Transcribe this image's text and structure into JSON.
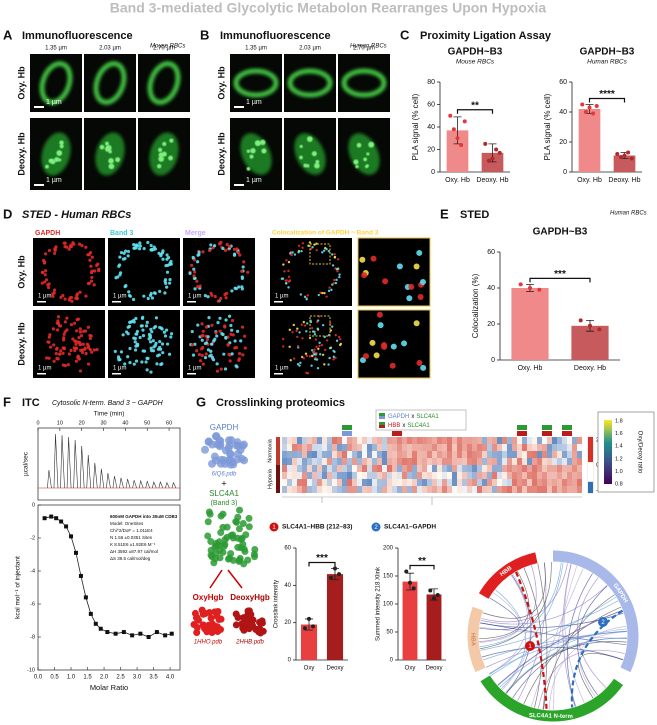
{
  "title": "Band 3-mediated Glycolytic Metabolon Rearranges Upon Hypoxia",
  "panelA": {
    "letter": "A",
    "heading": "Immunofluorescence",
    "species": "Mouse RBCs",
    "depths": [
      "1.35 µm",
      "2.03 µm",
      "2.70 µm"
    ],
    "rows": [
      "Oxy. Hb",
      "Deoxy. Hb"
    ],
    "scale": "1 µm"
  },
  "panelB": {
    "letter": "B",
    "heading": "Immunofluorescence",
    "species": "Human RBCs",
    "depths": [
      "1.35 µm",
      "2.03 µm",
      "2.70 µm"
    ],
    "rows": [
      "Oxy. Hb",
      "Deoxy. Hb"
    ],
    "scale": "1 µm"
  },
  "panelC": {
    "letter": "C",
    "heading": "Proximity Ligation Assay"
  },
  "panelD": {
    "letter": "D",
    "heading": "STED - Human RBCs",
    "channels": [
      "GAPDH",
      "Band 3",
      "Merge",
      "Colocalization of GAPDH ~ Band 3"
    ],
    "rows": [
      "Oxy. Hb",
      "Deoxy. Hb"
    ],
    "scale": "1 µm"
  },
  "panelE": {
    "letter": "E",
    "heading": "STED",
    "species": "Human RBCs"
  },
  "panelF": {
    "letter": "F",
    "heading": "ITC",
    "subheading": "Cytosolic N-term. Band 3 ~ GAPDH",
    "fit_text": [
      "600nM GAPDH into 30uM CDB3",
      "Model: OneSites",
      "Chi^2/DoF = 1.011E4",
      "N   1.56   ±0.0351 Sites",
      "K   8.51E6 ±1.92E6 M⁻¹",
      "ΔH  3592   ±87.97 cal/mol",
      "ΔS  39.5 cal/mol/deg"
    ]
  },
  "panelG": {
    "letter": "G",
    "heading": "Crosslinking proteomics",
    "structures": {
      "gapdh": "GAPDH",
      "gapdh_pdb": "6IQ6.pdb",
      "plus": "+",
      "slc": "SLC4A1",
      "slc_alt": "(Band 3)",
      "oxy": "OxyHgb",
      "deoxy": "DeoxyHgb",
      "oxy_pdb": "1HHO.pdb",
      "deoxy_pdb": "2HHB.pdb"
    },
    "heatmap": {
      "rows": [
        "Normoxia",
        "Hypoxia"
      ],
      "legend": [
        {
          "a": "GAPDH",
          "x": "x",
          "b": "SLC4A1"
        },
        {
          "a": "HBB",
          "x": "x",
          "b": "SLC4A1"
        }
      ],
      "scale": [
        "2",
        "0",
        "-1.9"
      ]
    },
    "ratio_bar": {
      "label": "Oxy/Deoxy ratio",
      "ticks": [
        "1.8",
        "1.6",
        "1.4",
        "1.2",
        "1.0",
        "0.8"
      ]
    },
    "circos": {
      "segments": [
        "HBB",
        "GAPDH",
        "HBA",
        "SLC4A1 N-term"
      ],
      "badges": [
        "1",
        "2"
      ]
    }
  },
  "chart_data": [
    {
      "type": "bar",
      "title": "GAPDH~B3",
      "subtitle": "Mouse RBCs",
      "ylabel": "PLA signal (% cell)",
      "categories": [
        "Oxy. Hb",
        "Deoxy. Hb"
      ],
      "values": [
        37,
        17
      ],
      "errors": [
        12,
        8
      ],
      "points": [
        [
          50,
          38,
          30,
          24,
          45
        ],
        [
          25,
          10,
          12,
          20,
          17
        ]
      ],
      "colors": [
        "#f08a8a",
        "#c65a5c"
      ],
      "point_colors": [
        "#e2383c",
        "#b02a2a"
      ],
      "ylim": [
        0,
        80
      ],
      "yticks": [
        0,
        20,
        40,
        60,
        80
      ],
      "significance": "**"
    },
    {
      "type": "bar",
      "title": "GAPDH~B3",
      "subtitle": "Human RBCs",
      "ylabel": "PLA signal (% cell)",
      "categories": [
        "Oxy. Hb",
        "Deoxy. Hb"
      ],
      "values": [
        42,
        11
      ],
      "errors": [
        3,
        2
      ],
      "points": [
        [
          45,
          40,
          43,
          39,
          44
        ],
        [
          12,
          10,
          11,
          13,
          9
        ]
      ],
      "colors": [
        "#f08a8a",
        "#c65a5c"
      ],
      "point_colors": [
        "#e2383c",
        "#b02a2a"
      ],
      "ylim": [
        0,
        60
      ],
      "yticks": [
        0,
        20,
        40,
        60
      ],
      "significance": "****"
    },
    {
      "type": "bar",
      "title": "GAPDH~B3",
      "ylabel": "Colocalization (%)",
      "categories": [
        "Oxy. Hb",
        "Deoxy. Hb"
      ],
      "values": [
        40,
        19
      ],
      "errors": [
        2,
        3
      ],
      "points": [
        [
          42,
          40,
          39
        ],
        [
          22,
          19,
          17
        ]
      ],
      "colors": [
        "#f08a8a",
        "#c65a5c"
      ],
      "point_colors": [
        "#e2383c",
        "#b02a2a"
      ],
      "ylim": [
        0,
        60
      ],
      "yticks": [
        0,
        20,
        40,
        60
      ],
      "significance": "***"
    },
    {
      "type": "bar",
      "title": "SLC4A1–HBB (212–83)",
      "badge": "1",
      "ylabel": "Crosslink intensity",
      "categories": [
        "Oxy",
        "Deoxy"
      ],
      "values": [
        19,
        46
      ],
      "errors": [
        3,
        3
      ],
      "points": [
        [
          17,
          22,
          18
        ],
        [
          44,
          49,
          46
        ]
      ],
      "colors": [
        "#e84040",
        "#a51d1d"
      ],
      "point_colors": [
        "#222222",
        "#222222"
      ],
      "ylim": [
        0,
        60
      ],
      "yticks": [
        0,
        20,
        40,
        60
      ],
      "significance": "***"
    },
    {
      "type": "bar",
      "title": "SLC4A1–GAPDH",
      "badge": "2",
      "ylabel": "Summed intensity 218 Xlink",
      "categories": [
        "Oxy",
        "Deoxy"
      ],
      "values": [
        140,
        117
      ],
      "errors": [
        15,
        10
      ],
      "points": [
        [
          158,
          138,
          128
        ],
        [
          124,
          110,
          116
        ]
      ],
      "colors": [
        "#e84040",
        "#a51d1d"
      ],
      "point_colors": [
        "#222222",
        "#222222"
      ],
      "ylim": [
        0,
        200
      ],
      "yticks": [
        0,
        50,
        100,
        150,
        200
      ],
      "significance": "**"
    },
    {
      "type": "itc-raw",
      "xlabel": "Time (min)",
      "ylabel": "µcal/sec",
      "x": [
        5,
        8,
        11,
        14,
        17,
        20,
        23,
        26,
        29,
        32,
        35,
        38,
        41,
        44,
        47,
        50,
        53,
        56,
        59,
        62
      ],
      "values": [
        0.3,
        0.9,
        0.88,
        0.85,
        0.8,
        0.7,
        0.55,
        0.42,
        0.32,
        0.25,
        0.2,
        0.17,
        0.15,
        0.13,
        0.12,
        0.11,
        0.1,
        0.1,
        0.09,
        0.09
      ],
      "xlim": [
        0,
        65
      ],
      "xticks": [
        0,
        10,
        20,
        30,
        40,
        50,
        60
      ],
      "ylim": [
        -0.2,
        1.0
      ]
    },
    {
      "type": "itc-fit",
      "xlabel": "Molar Ratio",
      "ylabel": "kcal mol⁻¹ of injectant",
      "x": [
        0.2,
        0.4,
        0.55,
        0.7,
        0.85,
        1.0,
        1.15,
        1.3,
        1.45,
        1.6,
        1.75,
        1.9,
        2.1,
        2.35,
        2.6,
        2.85,
        3.1,
        3.35,
        3.6,
        3.85,
        4.05
      ],
      "values": [
        -0.8,
        -0.7,
        -0.8,
        -1.0,
        -1.3,
        -1.9,
        -2.9,
        -4.3,
        -5.6,
        -6.6,
        -7.2,
        -7.5,
        -7.7,
        -7.8,
        -7.7,
        -7.9,
        -7.8,
        -8.0,
        -7.7,
        -7.9,
        -7.8
      ],
      "xlim": [
        0,
        4.3
      ],
      "xticks": [
        {
          "value": 0,
          "label": "0.0"
        },
        0.5,
        {
          "value": 1,
          "label": "1.0"
        },
        1.5,
        {
          "value": 2,
          "label": "2.0"
        },
        2.5,
        {
          "value": 3,
          "label": "3.0"
        },
        3.5,
        {
          "value": 4,
          "label": "4.0"
        }
      ],
      "ylim": [
        -10,
        0
      ],
      "yticks": [
        0,
        -2,
        -4,
        -6,
        -8,
        -10
      ]
    }
  ]
}
